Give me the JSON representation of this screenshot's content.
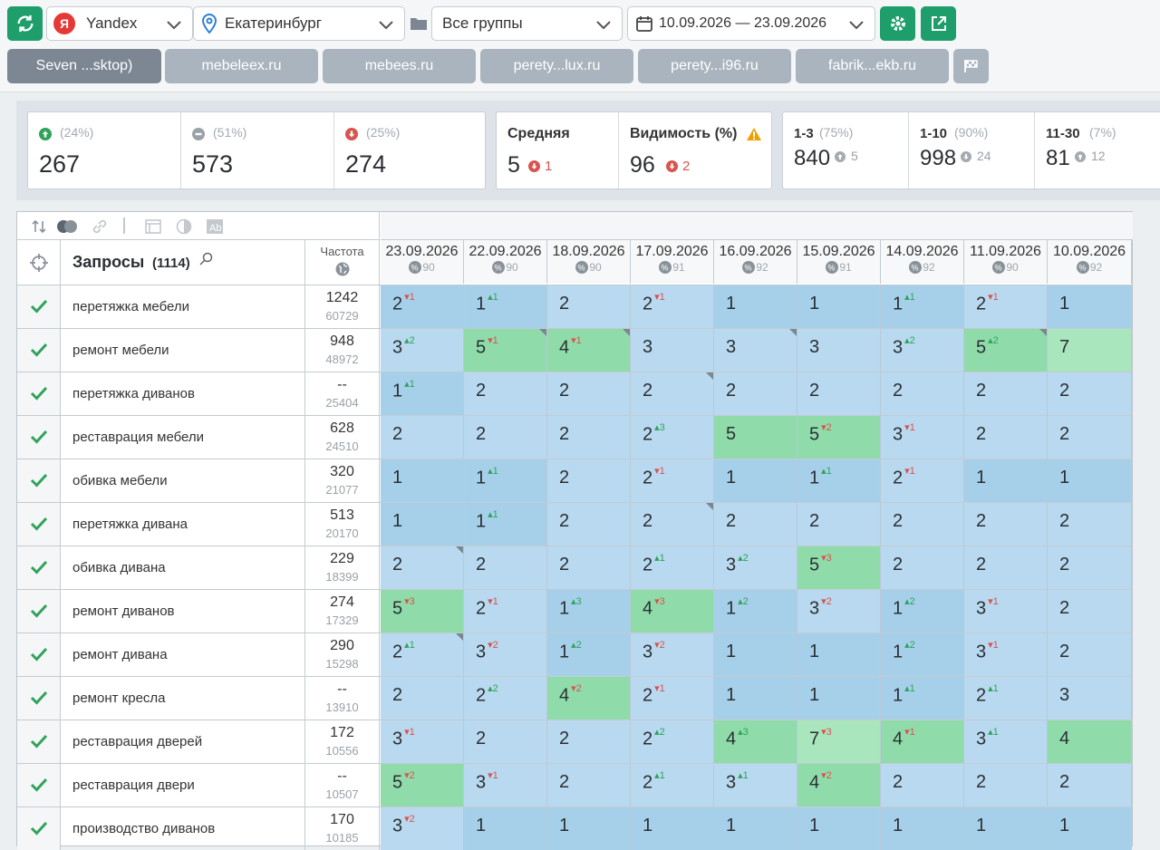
{
  "toolbar": {
    "search_engine": "Yandex",
    "region": "Екатеринбург",
    "group": "Все группы",
    "date_range": "10.09.2026 — 23.09.2026"
  },
  "tabs": [
    "Seven ...sktop)",
    "mebeleex.ru",
    "mebees.ru",
    "perety...lux.ru",
    "perety...i96.ru",
    "fabrik...ekb.ru"
  ],
  "summary": {
    "up": {
      "pct": "(24%)",
      "value": "267"
    },
    "same": {
      "pct": "(51%)",
      "value": "573"
    },
    "down": {
      "pct": "(25%)",
      "value": "274"
    },
    "avg": {
      "label": "Средняя",
      "value": "5",
      "delta": "1"
    },
    "visibility": {
      "label": "Видимость (%)",
      "value": "96",
      "delta": "2"
    },
    "top3": {
      "label": "1-3",
      "pct": "(75%)",
      "value": "840",
      "delta": "5"
    },
    "top10": {
      "label": "1-10",
      "pct": "(90%)",
      "value": "998",
      "delta": "24"
    },
    "top30": {
      "label": "11-30",
      "pct": "(7%)",
      "value": "81",
      "delta": "12"
    }
  },
  "table": {
    "queries_label": "Запросы",
    "queries_count": "(1114)",
    "freq_label": "Частота",
    "dates": [
      {
        "date": "23.09.2026",
        "vis": "90"
      },
      {
        "date": "22.09.2026",
        "vis": "90"
      },
      {
        "date": "18.09.2026",
        "vis": "90"
      },
      {
        "date": "17.09.2026",
        "vis": "91"
      },
      {
        "date": "16.09.2026",
        "vis": "92"
      },
      {
        "date": "15.09.2026",
        "vis": "91"
      },
      {
        "date": "14.09.2026",
        "vis": "92"
      },
      {
        "date": "11.09.2026",
        "vis": "90"
      },
      {
        "date": "10.09.2026",
        "vis": "92"
      }
    ],
    "rows": [
      {
        "q": "перетяжка мебели",
        "f1": "1242",
        "f2": "60729",
        "cells": [
          [
            "2",
            "1",
            "dn",
            "c1",
            0
          ],
          [
            "1",
            "1",
            "up",
            "c1",
            0
          ],
          [
            "2",
            "",
            "",
            "c2",
            0
          ],
          [
            "2",
            "1",
            "dn",
            "c2",
            0
          ],
          [
            "1",
            "",
            "",
            "c1",
            0
          ],
          [
            "1",
            "",
            "",
            "c1",
            0
          ],
          [
            "1",
            "1",
            "up",
            "c1",
            0
          ],
          [
            "2",
            "1",
            "dn",
            "c2",
            0
          ],
          [
            "1",
            "",
            "",
            "c1",
            0
          ]
        ]
      },
      {
        "q": "ремонт мебели",
        "f1": "948",
        "f2": "48972",
        "cells": [
          [
            "3",
            "2",
            "up",
            "c2",
            0
          ],
          [
            "5",
            "1",
            "dn",
            "c3",
            1
          ],
          [
            "4",
            "1",
            "dn",
            "c3",
            1
          ],
          [
            "3",
            "",
            "",
            "c2",
            0
          ],
          [
            "3",
            "",
            "",
            "c2",
            1
          ],
          [
            "3",
            "",
            "",
            "c2",
            0
          ],
          [
            "3",
            "2",
            "up",
            "c2",
            0
          ],
          [
            "5",
            "2",
            "up",
            "c3",
            1
          ],
          [
            "7",
            "",
            "",
            "c4",
            0
          ]
        ]
      },
      {
        "q": "перетяжка диванов",
        "f1": "--",
        "f2": "25404",
        "cells": [
          [
            "1",
            "1",
            "up",
            "c1",
            0
          ],
          [
            "2",
            "",
            "",
            "c2",
            0
          ],
          [
            "2",
            "",
            "",
            "c2",
            0
          ],
          [
            "2",
            "",
            "",
            "c2",
            1
          ],
          [
            "2",
            "",
            "",
            "c2",
            0
          ],
          [
            "2",
            "",
            "",
            "c2",
            0
          ],
          [
            "2",
            "",
            "",
            "c2",
            0
          ],
          [
            "2",
            "",
            "",
            "c2",
            0
          ],
          [
            "2",
            "",
            "",
            "c2",
            0
          ]
        ]
      },
      {
        "q": "реставрация мебели",
        "f1": "628",
        "f2": "24510",
        "cells": [
          [
            "2",
            "",
            "",
            "c2",
            0
          ],
          [
            "2",
            "",
            "",
            "c2",
            0
          ],
          [
            "2",
            "",
            "",
            "c2",
            0
          ],
          [
            "2",
            "3",
            "up",
            "c2",
            0
          ],
          [
            "5",
            "",
            "",
            "c3",
            0
          ],
          [
            "5",
            "2",
            "dn",
            "c3",
            0
          ],
          [
            "3",
            "1",
            "dn",
            "c2",
            0
          ],
          [
            "2",
            "",
            "",
            "c2",
            0
          ],
          [
            "2",
            "",
            "",
            "c2",
            0
          ]
        ]
      },
      {
        "q": "обивка мебели",
        "f1": "320",
        "f2": "21077",
        "cells": [
          [
            "1",
            "",
            "",
            "c1",
            0
          ],
          [
            "1",
            "1",
            "up",
            "c1",
            0
          ],
          [
            "2",
            "",
            "",
            "c2",
            0
          ],
          [
            "2",
            "1",
            "dn",
            "c2",
            0
          ],
          [
            "1",
            "",
            "",
            "c1",
            0
          ],
          [
            "1",
            "1",
            "up",
            "c1",
            0
          ],
          [
            "2",
            "1",
            "dn",
            "c2",
            0
          ],
          [
            "1",
            "",
            "",
            "c1",
            0
          ],
          [
            "1",
            "",
            "",
            "c1",
            0
          ]
        ]
      },
      {
        "q": "перетяжка дивана",
        "f1": "513",
        "f2": "20170",
        "cells": [
          [
            "1",
            "",
            "",
            "c1",
            0
          ],
          [
            "1",
            "1",
            "up",
            "c1",
            0
          ],
          [
            "2",
            "",
            "",
            "c2",
            0
          ],
          [
            "2",
            "",
            "",
            "c2",
            1
          ],
          [
            "2",
            "",
            "",
            "c2",
            0
          ],
          [
            "2",
            "",
            "",
            "c2",
            0
          ],
          [
            "2",
            "",
            "",
            "c2",
            0
          ],
          [
            "2",
            "",
            "",
            "c2",
            0
          ],
          [
            "2",
            "",
            "",
            "c2",
            0
          ]
        ]
      },
      {
        "q": "обивка дивана",
        "f1": "229",
        "f2": "18399",
        "cells": [
          [
            "2",
            "",
            "",
            "c2",
            1
          ],
          [
            "2",
            "",
            "",
            "c2",
            0
          ],
          [
            "2",
            "",
            "",
            "c2",
            0
          ],
          [
            "2",
            "1",
            "up",
            "c2",
            0
          ],
          [
            "3",
            "2",
            "up",
            "c2",
            0
          ],
          [
            "5",
            "3",
            "dn",
            "c3",
            0
          ],
          [
            "2",
            "",
            "",
            "c2",
            0
          ],
          [
            "2",
            "",
            "",
            "c2",
            0
          ],
          [
            "2",
            "",
            "",
            "c2",
            0
          ]
        ]
      },
      {
        "q": "ремонт диванов",
        "f1": "274",
        "f2": "17329",
        "cells": [
          [
            "5",
            "3",
            "dn",
            "c3",
            0
          ],
          [
            "2",
            "1",
            "dn",
            "c2",
            0
          ],
          [
            "1",
            "3",
            "up",
            "c1",
            0
          ],
          [
            "4",
            "3",
            "dn",
            "c3",
            0
          ],
          [
            "1",
            "2",
            "up",
            "c1",
            0
          ],
          [
            "3",
            "2",
            "dn",
            "c2",
            0
          ],
          [
            "1",
            "2",
            "up",
            "c1",
            0
          ],
          [
            "3",
            "1",
            "dn",
            "c2",
            0
          ],
          [
            "2",
            "",
            "",
            "c2",
            0
          ]
        ]
      },
      {
        "q": "ремонт дивана",
        "f1": "290",
        "f2": "15298",
        "cells": [
          [
            "2",
            "1",
            "up",
            "c2",
            1
          ],
          [
            "3",
            "2",
            "dn",
            "c2",
            0
          ],
          [
            "1",
            "2",
            "up",
            "c1",
            0
          ],
          [
            "3",
            "2",
            "dn",
            "c2",
            0
          ],
          [
            "1",
            "",
            "",
            "c1",
            0
          ],
          [
            "1",
            "",
            "",
            "c1",
            0
          ],
          [
            "1",
            "2",
            "up",
            "c1",
            0
          ],
          [
            "3",
            "1",
            "dn",
            "c2",
            0
          ],
          [
            "2",
            "",
            "",
            "c2",
            0
          ]
        ]
      },
      {
        "q": "ремонт кресла",
        "f1": "--",
        "f2": "13910",
        "cells": [
          [
            "2",
            "",
            "",
            "c2",
            0
          ],
          [
            "2",
            "2",
            "up",
            "c2",
            0
          ],
          [
            "4",
            "2",
            "dn",
            "c3",
            0
          ],
          [
            "2",
            "1",
            "dn",
            "c2",
            0
          ],
          [
            "1",
            "",
            "",
            "c1",
            0
          ],
          [
            "1",
            "",
            "",
            "c1",
            0
          ],
          [
            "1",
            "1",
            "up",
            "c1",
            0
          ],
          [
            "2",
            "1",
            "up",
            "c2",
            0
          ],
          [
            "3",
            "",
            "",
            "c2",
            0
          ]
        ]
      },
      {
        "q": "реставрация дверей",
        "f1": "172",
        "f2": "10556",
        "cells": [
          [
            "3",
            "1",
            "dn",
            "c2",
            0
          ],
          [
            "2",
            "",
            "",
            "c2",
            0
          ],
          [
            "2",
            "",
            "",
            "c2",
            0
          ],
          [
            "2",
            "2",
            "up",
            "c2",
            0
          ],
          [
            "4",
            "3",
            "up",
            "c3",
            0
          ],
          [
            "7",
            "3",
            "dn",
            "c4",
            0
          ],
          [
            "4",
            "1",
            "dn",
            "c3",
            0
          ],
          [
            "3",
            "1",
            "up",
            "c2",
            0
          ],
          [
            "4",
            "",
            "",
            "c3",
            0
          ]
        ]
      },
      {
        "q": "реставрация двери",
        "f1": "--",
        "f2": "10507",
        "cells": [
          [
            "5",
            "2",
            "dn",
            "c3",
            0
          ],
          [
            "3",
            "1",
            "dn",
            "c2",
            0
          ],
          [
            "2",
            "",
            "",
            "c2",
            0
          ],
          [
            "2",
            "1",
            "up",
            "c2",
            0
          ],
          [
            "3",
            "1",
            "up",
            "c2",
            0
          ],
          [
            "4",
            "2",
            "dn",
            "c3",
            0
          ],
          [
            "2",
            "",
            "",
            "c2",
            0
          ],
          [
            "2",
            "",
            "",
            "c2",
            0
          ],
          [
            "2",
            "",
            "",
            "c2",
            0
          ]
        ]
      },
      {
        "q": "производство диванов",
        "f1": "170",
        "f2": "10185",
        "cells": [
          [
            "3",
            "2",
            "dn",
            "c2",
            0
          ],
          [
            "1",
            "",
            "",
            "c1",
            0
          ],
          [
            "1",
            "",
            "",
            "c1",
            0
          ],
          [
            "1",
            "",
            "",
            "c1",
            0
          ],
          [
            "1",
            "",
            "",
            "c1",
            0
          ],
          [
            "1",
            "",
            "",
            "c1",
            0
          ],
          [
            "1",
            "",
            "",
            "c1",
            0
          ],
          [
            "1",
            "",
            "",
            "c1",
            0
          ],
          [
            "1",
            "",
            "",
            "c1",
            0
          ]
        ]
      }
    ]
  },
  "colors": {
    "green": "#1e9e6b",
    "tab": "#aab4be",
    "tab_active": "#7c8793"
  }
}
